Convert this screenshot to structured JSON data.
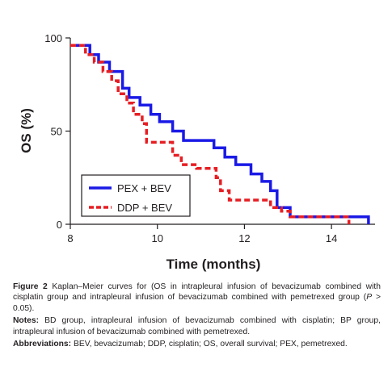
{
  "chart_data": {
    "type": "line",
    "subtype": "kaplan-meier step curves",
    "ylabel": "OS (%)",
    "xlabel": "Time (months)",
    "xlim": [
      8,
      15
    ],
    "ylim": [
      0,
      100
    ],
    "x_ticks": [
      8,
      10,
      12,
      14
    ],
    "y_ticks": [
      0,
      50,
      100
    ],
    "x_tick_labels": [
      "8",
      "10",
      "12",
      "14"
    ],
    "y_tick_labels": [
      "0",
      "50",
      "100"
    ],
    "legend_position": "bottom-left",
    "series": [
      {
        "name": "PEX + BEV",
        "color": "#1a1ae6",
        "style": "solid",
        "points": [
          [
            8.0,
            96
          ],
          [
            8.45,
            96
          ],
          [
            8.45,
            91
          ],
          [
            8.65,
            91
          ],
          [
            8.65,
            87
          ],
          [
            8.9,
            87
          ],
          [
            8.9,
            82
          ],
          [
            9.2,
            82
          ],
          [
            9.2,
            73
          ],
          [
            9.35,
            73
          ],
          [
            9.35,
            68
          ],
          [
            9.6,
            68
          ],
          [
            9.6,
            64
          ],
          [
            9.85,
            64
          ],
          [
            9.85,
            59
          ],
          [
            10.05,
            59
          ],
          [
            10.05,
            55
          ],
          [
            10.35,
            55
          ],
          [
            10.35,
            50
          ],
          [
            10.6,
            50
          ],
          [
            10.6,
            45
          ],
          [
            11.3,
            45
          ],
          [
            11.3,
            41
          ],
          [
            11.55,
            41
          ],
          [
            11.55,
            36
          ],
          [
            11.8,
            36
          ],
          [
            11.8,
            32
          ],
          [
            12.15,
            32
          ],
          [
            12.15,
            27
          ],
          [
            12.4,
            27
          ],
          [
            12.4,
            23
          ],
          [
            12.6,
            23
          ],
          [
            12.6,
            18
          ],
          [
            12.75,
            18
          ],
          [
            12.75,
            9
          ],
          [
            13.05,
            9
          ],
          [
            13.05,
            4
          ],
          [
            14.85,
            4
          ],
          [
            14.85,
            0
          ]
        ]
      },
      {
        "name": "DDP + BEV",
        "color": "#e61e23",
        "style": "dashed",
        "points": [
          [
            8.0,
            96
          ],
          [
            8.35,
            96
          ],
          [
            8.35,
            91
          ],
          [
            8.55,
            91
          ],
          [
            8.55,
            87
          ],
          [
            8.75,
            87
          ],
          [
            8.75,
            82
          ],
          [
            8.95,
            82
          ],
          [
            8.95,
            77
          ],
          [
            9.1,
            77
          ],
          [
            9.1,
            70
          ],
          [
            9.3,
            70
          ],
          [
            9.3,
            65
          ],
          [
            9.45,
            65
          ],
          [
            9.45,
            59
          ],
          [
            9.65,
            59
          ],
          [
            9.65,
            54
          ],
          [
            9.75,
            54
          ],
          [
            9.75,
            44
          ],
          [
            10.35,
            44
          ],
          [
            10.35,
            37
          ],
          [
            10.55,
            37
          ],
          [
            10.55,
            32
          ],
          [
            10.9,
            32
          ],
          [
            10.9,
            30
          ],
          [
            11.35,
            30
          ],
          [
            11.35,
            25
          ],
          [
            11.45,
            25
          ],
          [
            11.45,
            18
          ],
          [
            11.65,
            18
          ],
          [
            11.65,
            13
          ],
          [
            12.6,
            13
          ],
          [
            12.6,
            9
          ],
          [
            12.85,
            9
          ],
          [
            12.85,
            7
          ],
          [
            13.05,
            7
          ],
          [
            13.05,
            4
          ],
          [
            14.4,
            4
          ],
          [
            14.4,
            0
          ]
        ]
      }
    ]
  },
  "caption": {
    "figure_label": "Figure 2",
    "figure_text": "Kaplan–Meier curves for (OS in intrapleural infusion of bevacizumab combined with cisplatin group and intrapleural infusion of bevacizumab combined with pemetrexed group (",
    "p_symbol": "P",
    "p_rest": " > 0.05).",
    "notes_label": "Notes:",
    "notes_text": " BD group, intrapleural infusion of bevacizumab combined with cisplatin; BP group, intrapleural infusion of bevacizumab combined with pemetrexed.",
    "abbr_label": "Abbreviations:",
    "abbr_text": " BEV, bevacizumab; DDP, cisplatin; OS, overall survival; PEX, pemetrexed."
  }
}
